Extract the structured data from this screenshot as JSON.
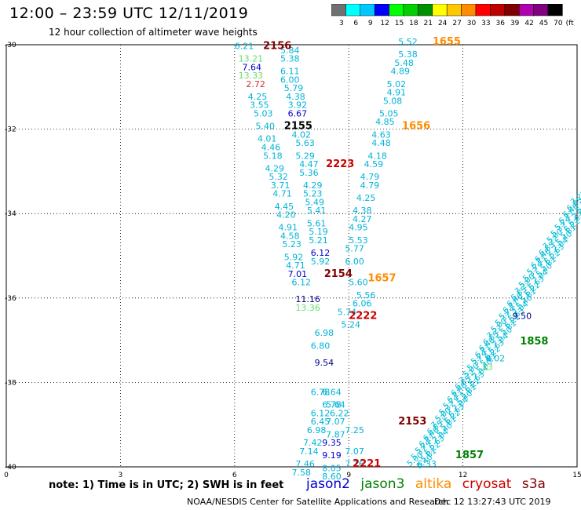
{
  "title": "12:00 – 23:59 UTC 12/11/2019",
  "subtitle": "12 hour collection of altimeter wave heights",
  "colorbar": {
    "colors": [
      "#707070",
      "#00ffff",
      "#00c8ff",
      "#0000ff",
      "#00ff00",
      "#00d000",
      "#009000",
      "#ffff00",
      "#ffc800",
      "#ff8c00",
      "#ff0000",
      "#c00000",
      "#800000",
      "#b000b0",
      "#800080",
      "#000000"
    ],
    "labels": [
      "3",
      "6",
      "9",
      "12",
      "15",
      "18",
      "21",
      "24",
      "27",
      "30",
      "33",
      "36",
      "39",
      "42",
      "45",
      "70",
      "(ft)"
    ]
  },
  "map": {
    "x_ticks": [
      "0",
      "3",
      "6",
      "9",
      "12",
      "15"
    ],
    "y_ticks": [
      "-30",
      "-32",
      "-34",
      "-36",
      "-38",
      "-40"
    ]
  },
  "track_labels": [
    {
      "text": "2156",
      "color": "#800000",
      "lon": 6.75,
      "lat": -30.1
    },
    {
      "text": "2155",
      "color": "#000000",
      "lon": 7.3,
      "lat": -32.0
    },
    {
      "text": "2223",
      "color": "#cc0000",
      "lon": 8.4,
      "lat": -32.9
    },
    {
      "text": "2154",
      "color": "#800000",
      "lon": 8.35,
      "lat": -35.5
    },
    {
      "text": "2222",
      "color": "#cc0000",
      "lon": 9.0,
      "lat": -36.5
    },
    {
      "text": "2153",
      "color": "#800000",
      "lon": 10.3,
      "lat": -39.0
    },
    {
      "text": "2221",
      "color": "#cc0000",
      "lon": 9.1,
      "lat": -40.0
    },
    {
      "text": "1655",
      "color": "#ff8c00",
      "lon": 11.2,
      "lat": -30.0
    },
    {
      "text": "1656",
      "color": "#ff8c00",
      "lon": 10.4,
      "lat": -32.0
    },
    {
      "text": "1657",
      "color": "#ff8c00",
      "lon": 9.5,
      "lat": -35.6
    },
    {
      "text": "1858",
      "color": "#008000",
      "lon": 13.5,
      "lat": -37.1
    },
    {
      "text": "1857",
      "color": "#008000",
      "lon": 11.8,
      "lat": -39.8
    }
  ],
  "swh_labels": [
    {
      "text": "6.21",
      "color": "#00b4d8",
      "lon": 6.0,
      "lat": -30.1
    },
    {
      "text": "5.84",
      "color": "#00b4d8",
      "lon": 7.2,
      "lat": -30.2
    },
    {
      "text": "13.21",
      "color": "#66dd66",
      "lon": 6.1,
      "lat": -30.4
    },
    {
      "text": "5.38",
      "color": "#00b4d8",
      "lon": 7.2,
      "lat": -30.4
    },
    {
      "text": "7.64",
      "color": "#0000cc",
      "lon": 6.2,
      "lat": -30.6
    },
    {
      "text": "6.11",
      "color": "#00b4d8",
      "lon": 7.2,
      "lat": -30.7
    },
    {
      "text": "13.33",
      "color": "#66dd66",
      "lon": 6.1,
      "lat": -30.8
    },
    {
      "text": "6.00",
      "color": "#00b4d8",
      "lon": 7.2,
      "lat": -30.9
    },
    {
      "text": "2.72",
      "color": "#cc3333",
      "lon": 6.3,
      "lat": -31.0
    },
    {
      "text": "5.79",
      "color": "#00b4d8",
      "lon": 7.3,
      "lat": -31.1
    },
    {
      "text": "4.25",
      "color": "#00b4d8",
      "lon": 6.35,
      "lat": -31.3
    },
    {
      "text": "4.38",
      "color": "#00b4d8",
      "lon": 7.35,
      "lat": -31.3
    },
    {
      "text": "3.55",
      "color": "#00b4d8",
      "lon": 6.4,
      "lat": -31.5
    },
    {
      "text": "3.92",
      "color": "#00b4d8",
      "lon": 7.4,
      "lat": -31.5
    },
    {
      "text": "5.03",
      "color": "#00b4d8",
      "lon": 6.5,
      "lat": -31.7
    },
    {
      "text": "6.67",
      "color": "#0000cc",
      "lon": 7.4,
      "lat": -31.7
    },
    {
      "text": "5.40",
      "color": "#00b4d8",
      "lon": 6.55,
      "lat": -32.0
    },
    {
      "text": "4.01",
      "color": "#00b4d8",
      "lon": 6.6,
      "lat": -32.3
    },
    {
      "text": "4.02",
      "color": "#00b4d8",
      "lon": 7.5,
      "lat": -32.2
    },
    {
      "text": "4.46",
      "color": "#00b4d8",
      "lon": 6.7,
      "lat": -32.5
    },
    {
      "text": "5.63",
      "color": "#00b4d8",
      "lon": 7.6,
      "lat": -32.4
    },
    {
      "text": "5.18",
      "color": "#00b4d8",
      "lon": 6.75,
      "lat": -32.7
    },
    {
      "text": "5.29",
      "color": "#00b4d8",
      "lon": 7.6,
      "lat": -32.7
    },
    {
      "text": "4.29",
      "color": "#00b4d8",
      "lon": 6.8,
      "lat": -33.0
    },
    {
      "text": "4.47",
      "color": "#00b4d8",
      "lon": 7.7,
      "lat": -32.9
    },
    {
      "text": "5.32",
      "color": "#00b4d8",
      "lon": 6.9,
      "lat": -33.2
    },
    {
      "text": "5.36",
      "color": "#00b4d8",
      "lon": 7.7,
      "lat": -33.1
    },
    {
      "text": "3.71",
      "color": "#00b4d8",
      "lon": 6.95,
      "lat": -33.4
    },
    {
      "text": "4.29",
      "color": "#00b4d8",
      "lon": 7.8,
      "lat": -33.4
    },
    {
      "text": "4.71",
      "color": "#00b4d8",
      "lon": 7.0,
      "lat": -33.6
    },
    {
      "text": "5.23",
      "color": "#00b4d8",
      "lon": 7.8,
      "lat": -33.6
    },
    {
      "text": "4.45",
      "color": "#00b4d8",
      "lon": 7.05,
      "lat": -33.9
    },
    {
      "text": "5.49",
      "color": "#00b4d8",
      "lon": 7.85,
      "lat": -33.8
    },
    {
      "text": "4.20",
      "color": "#00b4d8",
      "lon": 7.1,
      "lat": -34.1
    },
    {
      "text": "5.41",
      "color": "#00b4d8",
      "lon": 7.9,
      "lat": -34.0
    },
    {
      "text": "4.91",
      "color": "#00b4d8",
      "lon": 7.15,
      "lat": -34.4
    },
    {
      "text": "5.61",
      "color": "#00b4d8",
      "lon": 7.9,
      "lat": -34.3
    },
    {
      "text": "4.58",
      "color": "#00b4d8",
      "lon": 7.2,
      "lat": -34.6
    },
    {
      "text": "5.19",
      "color": "#00b4d8",
      "lon": 7.95,
      "lat": -34.5
    },
    {
      "text": "5.23",
      "color": "#00b4d8",
      "lon": 7.25,
      "lat": -34.8
    },
    {
      "text": "5.21",
      "color": "#00b4d8",
      "lon": 7.95,
      "lat": -34.7
    },
    {
      "text": "5.92",
      "color": "#00b4d8",
      "lon": 7.3,
      "lat": -35.1
    },
    {
      "text": "6.12",
      "color": "#0000cc",
      "lon": 8.0,
      "lat": -35.0
    },
    {
      "text": "4.71",
      "color": "#00b4d8",
      "lon": 7.35,
      "lat": -35.3
    },
    {
      "text": "5.92",
      "color": "#00b4d8",
      "lon": 8.0,
      "lat": -35.2
    },
    {
      "text": "7.01",
      "color": "#0000cc",
      "lon": 7.4,
      "lat": -35.5
    },
    {
      "text": "6.12",
      "color": "#00b4d8",
      "lon": 7.5,
      "lat": -35.7
    },
    {
      "text": "5.60",
      "color": "#00b4d8",
      "lon": 9.0,
      "lat": -35.7
    },
    {
      "text": "5.56",
      "color": "#00b4d8",
      "lon": 9.2,
      "lat": -36.0
    },
    {
      "text": "11.16",
      "color": "#000088",
      "lon": 7.6,
      "lat": -36.1
    },
    {
      "text": "6.06",
      "color": "#00b4d8",
      "lon": 9.1,
      "lat": -36.2
    },
    {
      "text": "13.36",
      "color": "#66dd66",
      "lon": 7.6,
      "lat": -36.3
    },
    {
      "text": "5.74",
      "color": "#00b4d8",
      "lon": 8.7,
      "lat": -36.4
    },
    {
      "text": "5.24",
      "color": "#00b4d8",
      "lon": 8.8,
      "lat": -36.7
    },
    {
      "text": "6.98",
      "color": "#00b4d8",
      "lon": 8.1,
      "lat": -36.9
    },
    {
      "text": "6.80",
      "color": "#00b4d8",
      "lon": 8.0,
      "lat": -37.2
    },
    {
      "text": "9.54",
      "color": "#000088",
      "lon": 8.1,
      "lat": -37.6
    },
    {
      "text": "6.78",
      "color": "#00b4d8",
      "lon": 8.0,
      "lat": -38.3
    },
    {
      "text": "6.64",
      "color": "#00b4d8",
      "lon": 8.3,
      "lat": -38.3
    },
    {
      "text": "6.78",
      "color": "#00b4d8",
      "lon": 8.3,
      "lat": -38.6
    },
    {
      "text": "5.64",
      "color": "#00b4d8",
      "lon": 8.4,
      "lat": -38.6
    },
    {
      "text": "6.12",
      "color": "#00b4d8",
      "lon": 8.0,
      "lat": -38.8
    },
    {
      "text": "6.22",
      "color": "#00b4d8",
      "lon": 8.5,
      "lat": -38.8
    },
    {
      "text": "6.45",
      "color": "#00b4d8",
      "lon": 8.0,
      "lat": -39.0
    },
    {
      "text": "7.07",
      "color": "#00b4d8",
      "lon": 8.4,
      "lat": -39.0
    },
    {
      "text": "6.98",
      "color": "#00b4d8",
      "lon": 7.9,
      "lat": -39.2
    },
    {
      "text": "7.87",
      "color": "#00b4d8",
      "lon": 8.4,
      "lat": -39.3
    },
    {
      "text": "7.25",
      "color": "#00b4d8",
      "lon": 8.9,
      "lat": -39.2
    },
    {
      "text": "7.42",
      "color": "#00b4d8",
      "lon": 7.8,
      "lat": -39.5
    },
    {
      "text": "9.35",
      "color": "#0000cc",
      "lon": 8.3,
      "lat": -39.5
    },
    {
      "text": "7.14",
      "color": "#00b4d8",
      "lon": 7.7,
      "lat": -39.7
    },
    {
      "text": "9.19",
      "color": "#0000cc",
      "lon": 8.3,
      "lat": -39.8
    },
    {
      "text": "7.07",
      "color": "#00b4d8",
      "lon": 8.9,
      "lat": -39.7
    },
    {
      "text": "7.46",
      "color": "#00b4d8",
      "lon": 7.6,
      "lat": -40.0
    },
    {
      "text": "8.05",
      "color": "#00b4d8",
      "lon": 8.3,
      "lat": -40.1
    },
    {
      "text": "7.16",
      "color": "#00b4d8",
      "lon": 8.9,
      "lat": -40.0
    },
    {
      "text": "7.58",
      "color": "#00b4d8",
      "lon": 7.5,
      "lat": -40.2
    },
    {
      "text": "8.60",
      "color": "#00b4d8",
      "lon": 8.3,
      "lat": -40.3
    },
    {
      "text": "5.52",
      "color": "#00b4d8",
      "lon": 10.3,
      "lat": -30.0
    },
    {
      "text": "5.38",
      "color": "#00b4d8",
      "lon": 10.3,
      "lat": -30.3
    },
    {
      "text": "5.48",
      "color": "#00b4d8",
      "lon": 10.2,
      "lat": -30.5
    },
    {
      "text": "4.89",
      "color": "#00b4d8",
      "lon": 10.1,
      "lat": -30.7
    },
    {
      "text": "5.02",
      "color": "#00b4d8",
      "lon": 10.0,
      "lat": -31.0
    },
    {
      "text": "4.91",
      "color": "#00b4d8",
      "lon": 10.0,
      "lat": -31.2
    },
    {
      "text": "5.08",
      "color": "#00b4d8",
      "lon": 9.9,
      "lat": -31.4
    },
    {
      "text": "5.05",
      "color": "#00b4d8",
      "lon": 9.8,
      "lat": -31.7
    },
    {
      "text": "4.85",
      "color": "#00b4d8",
      "lon": 9.7,
      "lat": -31.9
    },
    {
      "text": "4.63",
      "color": "#00b4d8",
      "lon": 9.6,
      "lat": -32.2
    },
    {
      "text": "4.48",
      "color": "#00b4d8",
      "lon": 9.6,
      "lat": -32.4
    },
    {
      "text": "4.18",
      "color": "#00b4d8",
      "lon": 9.5,
      "lat": -32.7
    },
    {
      "text": "4.59",
      "color": "#00b4d8",
      "lon": 9.4,
      "lat": -32.9
    },
    {
      "text": "4.79",
      "color": "#00b4d8",
      "lon": 9.3,
      "lat": -33.2
    },
    {
      "text": "4.79",
      "color": "#00b4d8",
      "lon": 9.3,
      "lat": -33.4
    },
    {
      "text": "4.25",
      "color": "#00b4d8",
      "lon": 9.2,
      "lat": -33.7
    },
    {
      "text": "4.38",
      "color": "#00b4d8",
      "lon": 9.1,
      "lat": -34.0
    },
    {
      "text": "4.27",
      "color": "#00b4d8",
      "lon": 9.1,
      "lat": -34.2
    },
    {
      "text": "4.95",
      "color": "#00b4d8",
      "lon": 9.0,
      "lat": -34.4
    },
    {
      "text": "5.53",
      "color": "#00b4d8",
      "lon": 9.0,
      "lat": -34.7
    },
    {
      "text": "5.77",
      "color": "#00b4d8",
      "lon": 8.9,
      "lat": -34.9
    },
    {
      "text": "6.00",
      "color": "#00b4d8",
      "lon": 8.9,
      "lat": -35.2
    },
    {
      "text": "9.50",
      "color": "#000088",
      "lon": 13.3,
      "lat": -36.5
    },
    {
      "text": "8.02",
      "color": "#00b4d8",
      "lon": 12.6,
      "lat": -37.5
    },
    {
      "text": "13",
      "color": "#66dd66",
      "lon": 12.5,
      "lat": -37.7
    },
    {
      "text": "6.33",
      "color": "#00b4d8",
      "lon": 10.8,
      "lat": -40.0
    }
  ],
  "note": "note:  1) Time is in UTC;  2) SWH is in feet",
  "legend": [
    {
      "text": "jason2",
      "color": "#0000cc"
    },
    {
      "text": "jason3",
      "color": "#008000"
    },
    {
      "text": "altika",
      "color": "#ff8c00"
    },
    {
      "text": "cryosat",
      "color": "#cc0000"
    },
    {
      "text": "s3a",
      "color": "#800000"
    }
  ],
  "credit": "NOAA/NESDIS Center for Satellite Applications and Research",
  "timestamp": "Dec 12 13:27:43 UTC 2019"
}
